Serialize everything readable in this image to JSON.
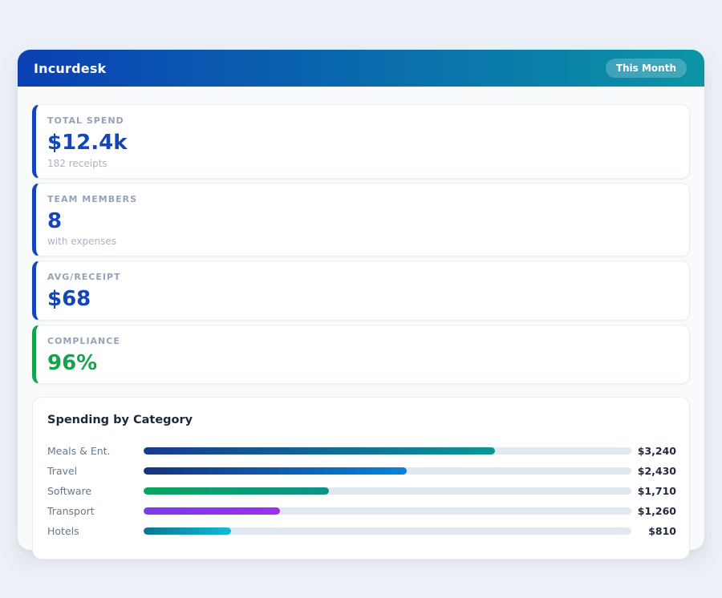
{
  "page": {
    "background": "#edf1f7"
  },
  "header": {
    "title": "Incurdesk",
    "badge_label": "This Month",
    "gradient_from": "#0a40b4",
    "gradient_to": "#0b94a6"
  },
  "stats": [
    {
      "label": "TOTAL SPEND",
      "value": "$12.4k",
      "sub": "182 receipts",
      "accent": "#1346bb"
    },
    {
      "label": "TEAM MEMBERS",
      "value": "8",
      "sub": "with expenses",
      "accent": "#1346bb"
    },
    {
      "label": "AVG/RECEIPT",
      "value": "$68",
      "sub": "",
      "accent": "#1346bb"
    },
    {
      "label": "COMPLIANCE",
      "value": "96%",
      "sub": "",
      "accent": "#16a34a"
    }
  ],
  "chart_data": {
    "type": "bar",
    "orientation": "horizontal",
    "title": "Spending by Category",
    "categories": [
      "Meals & Ent.",
      "Travel",
      "Software",
      "Transport",
      "Hotels"
    ],
    "values": [
      3240,
      2430,
      1710,
      1260,
      810
    ],
    "value_labels": [
      "$3,240",
      "$2,430",
      "$1,710",
      "$1,260",
      "$810"
    ],
    "xlim": [
      0,
      4500
    ],
    "track_color": "#e2e8f0",
    "bar_gradients": [
      [
        "#19398f",
        "#0b9795"
      ],
      [
        "#16337e",
        "#0583dd"
      ],
      [
        "#0aa45e",
        "#0d9289"
      ],
      [
        "#7c3aed",
        "#9c2ff2"
      ],
      [
        "#0d7590",
        "#10bcd8"
      ]
    ]
  }
}
